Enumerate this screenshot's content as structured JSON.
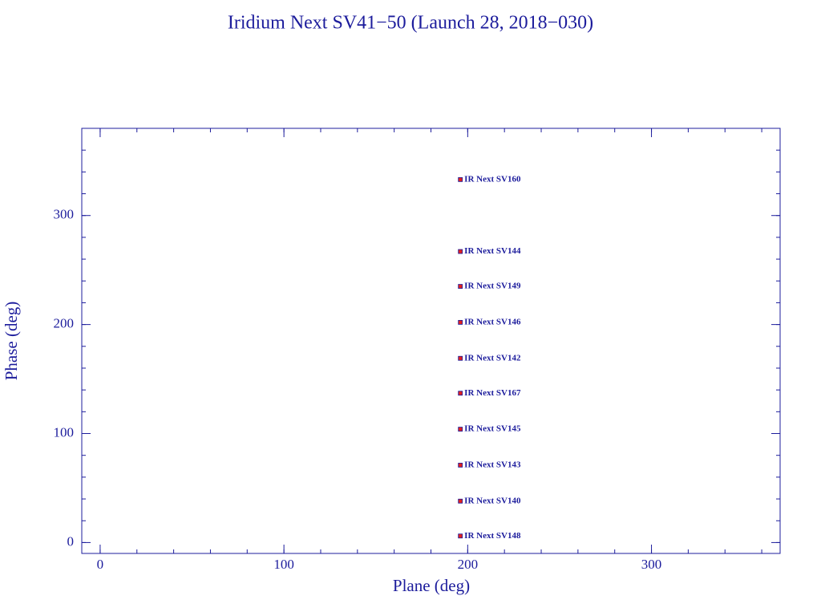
{
  "chart_data": {
    "type": "scatter",
    "title": "Iridium Next SV41−50 (Launch 28, 2018−030)",
    "x_label": "Plane (deg)",
    "y_label": "Phase (deg)",
    "x": [
      196,
      196,
      196,
      196,
      196,
      196,
      196,
      196,
      196,
      196
    ],
    "values": [
      333,
      267,
      235,
      202,
      169,
      137,
      104,
      71,
      38,
      6
    ],
    "labels": [
      "IR Next SV160",
      "IR Next SV144",
      "IR Next SV149",
      "IR Next SV146",
      "IR Next SV142",
      "IR Next SV167",
      "IR Next SV145",
      "IR Next SV143",
      "IR Next SV140",
      "IR Next SV148"
    ],
    "color": "#e02020",
    "xlim": [
      -10,
      370
    ],
    "ylim": [
      -10,
      380
    ],
    "xticks": [
      0,
      100,
      200,
      300
    ],
    "yticks": [
      0,
      100,
      200,
      300
    ],
    "xminor": 20,
    "yminor": 20
  }
}
